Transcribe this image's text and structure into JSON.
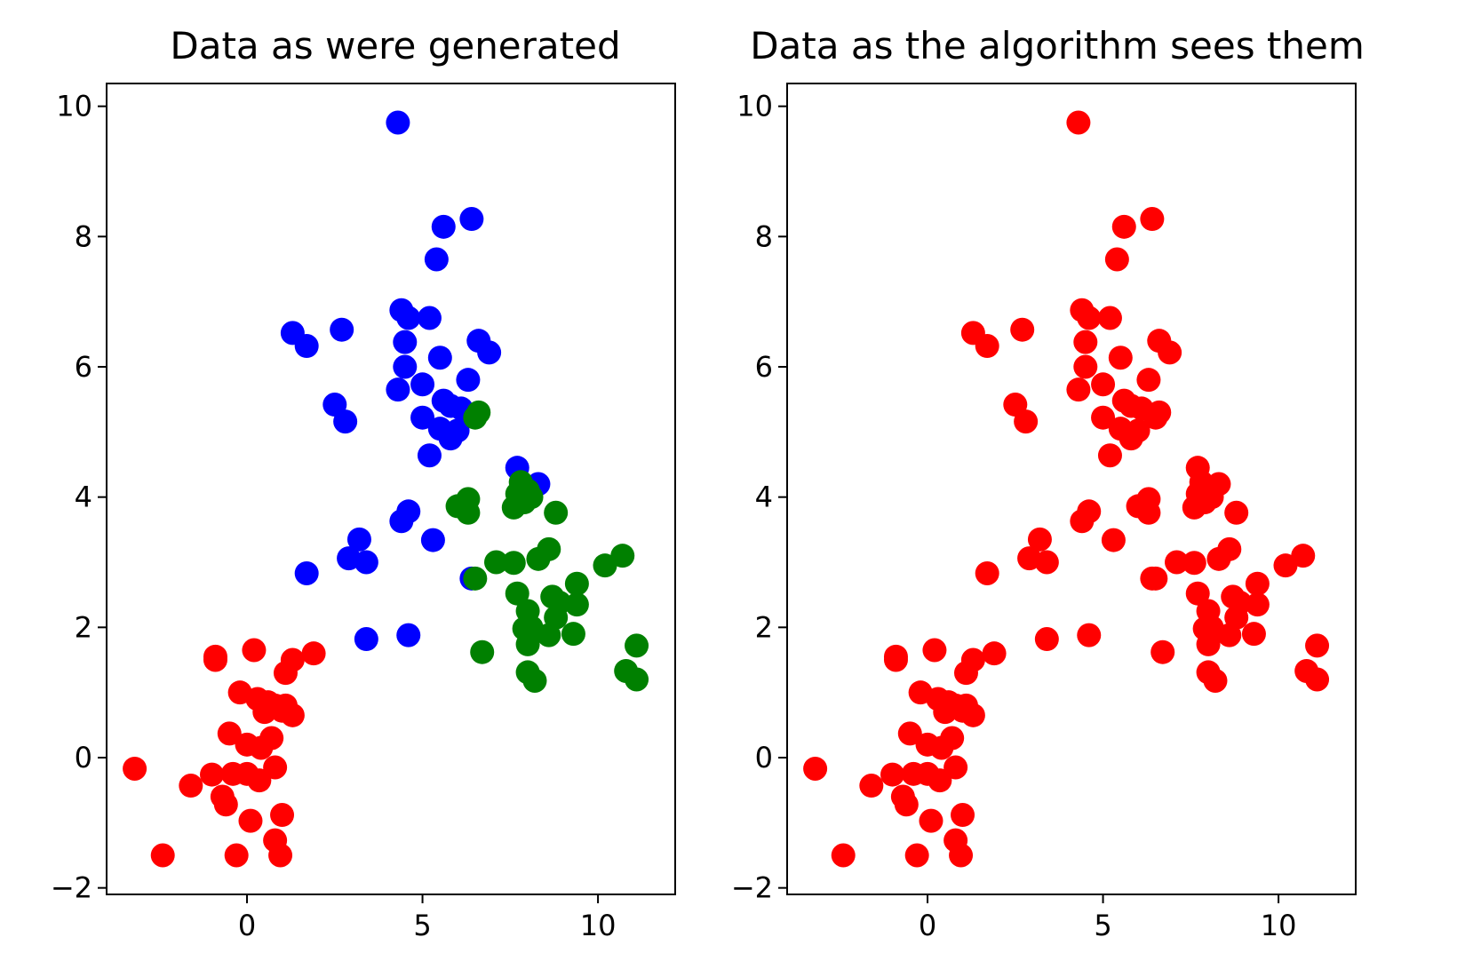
{
  "chart_data": [
    {
      "type": "scatter",
      "title": "Data as were generated",
      "xlim": [
        -4.0,
        12.2
      ],
      "ylim": [
        -2.1,
        10.35
      ],
      "xticks": [
        0,
        5,
        10
      ],
      "yticks": [
        -2,
        0,
        2,
        4,
        6,
        8,
        10
      ],
      "xtick_labels": [
        "0",
        "5",
        "10"
      ],
      "ytick_labels": [
        "−2",
        "0",
        "2",
        "4",
        "6",
        "8",
        "10"
      ],
      "grid": false,
      "series": [
        {
          "color": "#ff0000",
          "points": [
            [
              -3.2,
              -0.17
            ],
            [
              -2.4,
              -1.5
            ],
            [
              -1.6,
              -0.43
            ],
            [
              -1.0,
              -0.26
            ],
            [
              -0.9,
              1.55
            ],
            [
              -0.9,
              1.5
            ],
            [
              -0.7,
              -0.6
            ],
            [
              -0.6,
              -0.72
            ],
            [
              -0.5,
              0.37
            ],
            [
              -0.4,
              -0.25
            ],
            [
              -0.2,
              1.0
            ],
            [
              -0.3,
              -1.5
            ],
            [
              0.0,
              -0.25
            ],
            [
              0.0,
              0.2
            ],
            [
              0.1,
              -0.97
            ],
            [
              0.2,
              1.65
            ],
            [
              0.3,
              0.9
            ],
            [
              0.35,
              -0.35
            ],
            [
              0.4,
              0.15
            ],
            [
              0.5,
              0.7
            ],
            [
              0.6,
              0.85
            ],
            [
              0.7,
              0.3
            ],
            [
              0.8,
              -1.27
            ],
            [
              0.8,
              0.8
            ],
            [
              0.8,
              -0.15
            ],
            [
              0.95,
              -1.5
            ],
            [
              1.0,
              -0.88
            ],
            [
              1.0,
              0.72
            ],
            [
              1.1,
              0.8
            ],
            [
              1.1,
              1.3
            ],
            [
              1.3,
              1.5
            ],
            [
              1.3,
              0.65
            ],
            [
              1.9,
              1.6
            ]
          ]
        },
        {
          "color": "#0000ff",
          "points": [
            [
              4.3,
              9.75
            ],
            [
              5.6,
              8.15
            ],
            [
              6.4,
              8.27
            ],
            [
              5.4,
              7.65
            ],
            [
              1.3,
              6.52
            ],
            [
              1.7,
              6.32
            ],
            [
              2.7,
              6.57
            ],
            [
              4.4,
              6.87
            ],
            [
              4.6,
              6.75
            ],
            [
              5.2,
              6.75
            ],
            [
              4.5,
              6.38
            ],
            [
              6.6,
              6.4
            ],
            [
              6.9,
              6.22
            ],
            [
              5.5,
              6.14
            ],
            [
              4.5,
              6.0
            ],
            [
              5.0,
              5.73
            ],
            [
              4.3,
              5.65
            ],
            [
              6.3,
              5.8
            ],
            [
              2.5,
              5.42
            ],
            [
              2.8,
              5.16
            ],
            [
              5.0,
              5.22
            ],
            [
              5.6,
              5.48
            ],
            [
              5.8,
              5.4
            ],
            [
              6.1,
              5.36
            ],
            [
              5.5,
              5.05
            ],
            [
              5.8,
              4.9
            ],
            [
              6.0,
              5.02
            ],
            [
              5.2,
              4.64
            ],
            [
              7.7,
              4.45
            ],
            [
              8.3,
              4.2
            ],
            [
              4.6,
              3.78
            ],
            [
              4.4,
              3.63
            ],
            [
              5.3,
              3.34
            ],
            [
              3.2,
              3.35
            ],
            [
              2.9,
              3.06
            ],
            [
              3.4,
              3.0
            ],
            [
              1.7,
              2.83
            ],
            [
              6.4,
              2.75
            ],
            [
              3.4,
              1.82
            ],
            [
              4.6,
              1.88
            ]
          ]
        },
        {
          "color": "#008000",
          "points": [
            [
              6.6,
              5.3
            ],
            [
              6.5,
              5.22
            ],
            [
              7.8,
              4.23
            ],
            [
              8.0,
              4.1
            ],
            [
              7.7,
              4.05
            ],
            [
              7.9,
              3.92
            ],
            [
              8.1,
              4.0
            ],
            [
              7.6,
              3.84
            ],
            [
              6.0,
              3.86
            ],
            [
              6.3,
              3.97
            ],
            [
              6.3,
              3.76
            ],
            [
              8.8,
              3.76
            ],
            [
              8.6,
              3.2
            ],
            [
              8.3,
              3.05
            ],
            [
              7.1,
              3.0
            ],
            [
              7.6,
              2.99
            ],
            [
              6.5,
              2.75
            ],
            [
              9.4,
              2.67
            ],
            [
              10.7,
              3.1
            ],
            [
              10.2,
              2.95
            ],
            [
              7.7,
              2.52
            ],
            [
              8.7,
              2.47
            ],
            [
              8.9,
              2.38
            ],
            [
              9.4,
              2.35
            ],
            [
              8.0,
              2.25
            ],
            [
              8.8,
              2.15
            ],
            [
              7.9,
              1.98
            ],
            [
              8.1,
              2.0
            ],
            [
              8.6,
              1.88
            ],
            [
              9.3,
              1.9
            ],
            [
              8.0,
              1.74
            ],
            [
              6.7,
              1.62
            ],
            [
              11.1,
              1.72
            ],
            [
              8.0,
              1.31
            ],
            [
              10.8,
              1.33
            ],
            [
              8.2,
              1.18
            ],
            [
              11.1,
              1.2
            ]
          ]
        }
      ]
    },
    {
      "type": "scatter",
      "title": "Data as the algorithm sees them",
      "xlim": [
        -4.0,
        12.2
      ],
      "ylim": [
        -2.1,
        10.35
      ],
      "xticks": [
        0,
        5,
        10
      ],
      "yticks": [
        -2,
        0,
        2,
        4,
        6,
        8,
        10
      ],
      "xtick_labels": [
        "0",
        "5",
        "10"
      ],
      "ytick_labels": [
        "−2",
        "0",
        "2",
        "4",
        "6",
        "8",
        "10"
      ],
      "grid": false,
      "series": [
        {
          "color": "#ff0000",
          "points": [
            [
              -3.2,
              -0.17
            ],
            [
              -2.4,
              -1.5
            ],
            [
              -1.6,
              -0.43
            ],
            [
              -1.0,
              -0.26
            ],
            [
              -0.9,
              1.55
            ],
            [
              -0.9,
              1.5
            ],
            [
              -0.7,
              -0.6
            ],
            [
              -0.6,
              -0.72
            ],
            [
              -0.5,
              0.37
            ],
            [
              -0.4,
              -0.25
            ],
            [
              -0.2,
              1.0
            ],
            [
              -0.3,
              -1.5
            ],
            [
              0.0,
              -0.25
            ],
            [
              0.0,
              0.2
            ],
            [
              0.1,
              -0.97
            ],
            [
              0.2,
              1.65
            ],
            [
              0.3,
              0.9
            ],
            [
              0.35,
              -0.35
            ],
            [
              0.4,
              0.15
            ],
            [
              0.5,
              0.7
            ],
            [
              0.6,
              0.85
            ],
            [
              0.7,
              0.3
            ],
            [
              0.8,
              -1.27
            ],
            [
              0.8,
              0.8
            ],
            [
              0.8,
              -0.15
            ],
            [
              0.95,
              -1.5
            ],
            [
              1.0,
              -0.88
            ],
            [
              1.0,
              0.72
            ],
            [
              1.1,
              0.8
            ],
            [
              1.1,
              1.3
            ],
            [
              1.3,
              1.5
            ],
            [
              1.3,
              0.65
            ],
            [
              1.9,
              1.6
            ],
            [
              4.3,
              9.75
            ],
            [
              5.6,
              8.15
            ],
            [
              6.4,
              8.27
            ],
            [
              5.4,
              7.65
            ],
            [
              1.3,
              6.52
            ],
            [
              1.7,
              6.32
            ],
            [
              2.7,
              6.57
            ],
            [
              4.4,
              6.87
            ],
            [
              4.6,
              6.75
            ],
            [
              5.2,
              6.75
            ],
            [
              4.5,
              6.38
            ],
            [
              6.6,
              6.4
            ],
            [
              6.9,
              6.22
            ],
            [
              5.5,
              6.14
            ],
            [
              4.5,
              6.0
            ],
            [
              5.0,
              5.73
            ],
            [
              4.3,
              5.65
            ],
            [
              6.3,
              5.8
            ],
            [
              2.5,
              5.42
            ],
            [
              2.8,
              5.16
            ],
            [
              5.0,
              5.22
            ],
            [
              5.6,
              5.48
            ],
            [
              5.8,
              5.4
            ],
            [
              6.1,
              5.36
            ],
            [
              5.5,
              5.05
            ],
            [
              5.8,
              4.9
            ],
            [
              6.0,
              5.02
            ],
            [
              5.2,
              4.64
            ],
            [
              7.7,
              4.45
            ],
            [
              8.3,
              4.2
            ],
            [
              4.6,
              3.78
            ],
            [
              4.4,
              3.63
            ],
            [
              5.3,
              3.34
            ],
            [
              3.2,
              3.35
            ],
            [
              2.9,
              3.06
            ],
            [
              3.4,
              3.0
            ],
            [
              1.7,
              2.83
            ],
            [
              6.4,
              2.75
            ],
            [
              3.4,
              1.82
            ],
            [
              4.6,
              1.88
            ],
            [
              6.6,
              5.3
            ],
            [
              6.5,
              5.22
            ],
            [
              7.8,
              4.23
            ],
            [
              8.0,
              4.1
            ],
            [
              7.7,
              4.05
            ],
            [
              7.9,
              3.92
            ],
            [
              8.1,
              4.0
            ],
            [
              7.6,
              3.84
            ],
            [
              6.0,
              3.86
            ],
            [
              6.3,
              3.97
            ],
            [
              6.3,
              3.76
            ],
            [
              8.8,
              3.76
            ],
            [
              8.6,
              3.2
            ],
            [
              8.3,
              3.05
            ],
            [
              7.1,
              3.0
            ],
            [
              7.6,
              2.99
            ],
            [
              6.5,
              2.75
            ],
            [
              9.4,
              2.67
            ],
            [
              10.7,
              3.1
            ],
            [
              10.2,
              2.95
            ],
            [
              7.7,
              2.52
            ],
            [
              8.7,
              2.47
            ],
            [
              8.9,
              2.38
            ],
            [
              9.4,
              2.35
            ],
            [
              8.0,
              2.25
            ],
            [
              8.8,
              2.15
            ],
            [
              7.9,
              1.98
            ],
            [
              8.1,
              2.0
            ],
            [
              8.6,
              1.88
            ],
            [
              9.3,
              1.9
            ],
            [
              8.0,
              1.74
            ],
            [
              6.7,
              1.62
            ],
            [
              11.1,
              1.72
            ],
            [
              8.0,
              1.31
            ],
            [
              10.8,
              1.33
            ],
            [
              8.2,
              1.18
            ],
            [
              11.1,
              1.2
            ]
          ]
        }
      ]
    }
  ]
}
